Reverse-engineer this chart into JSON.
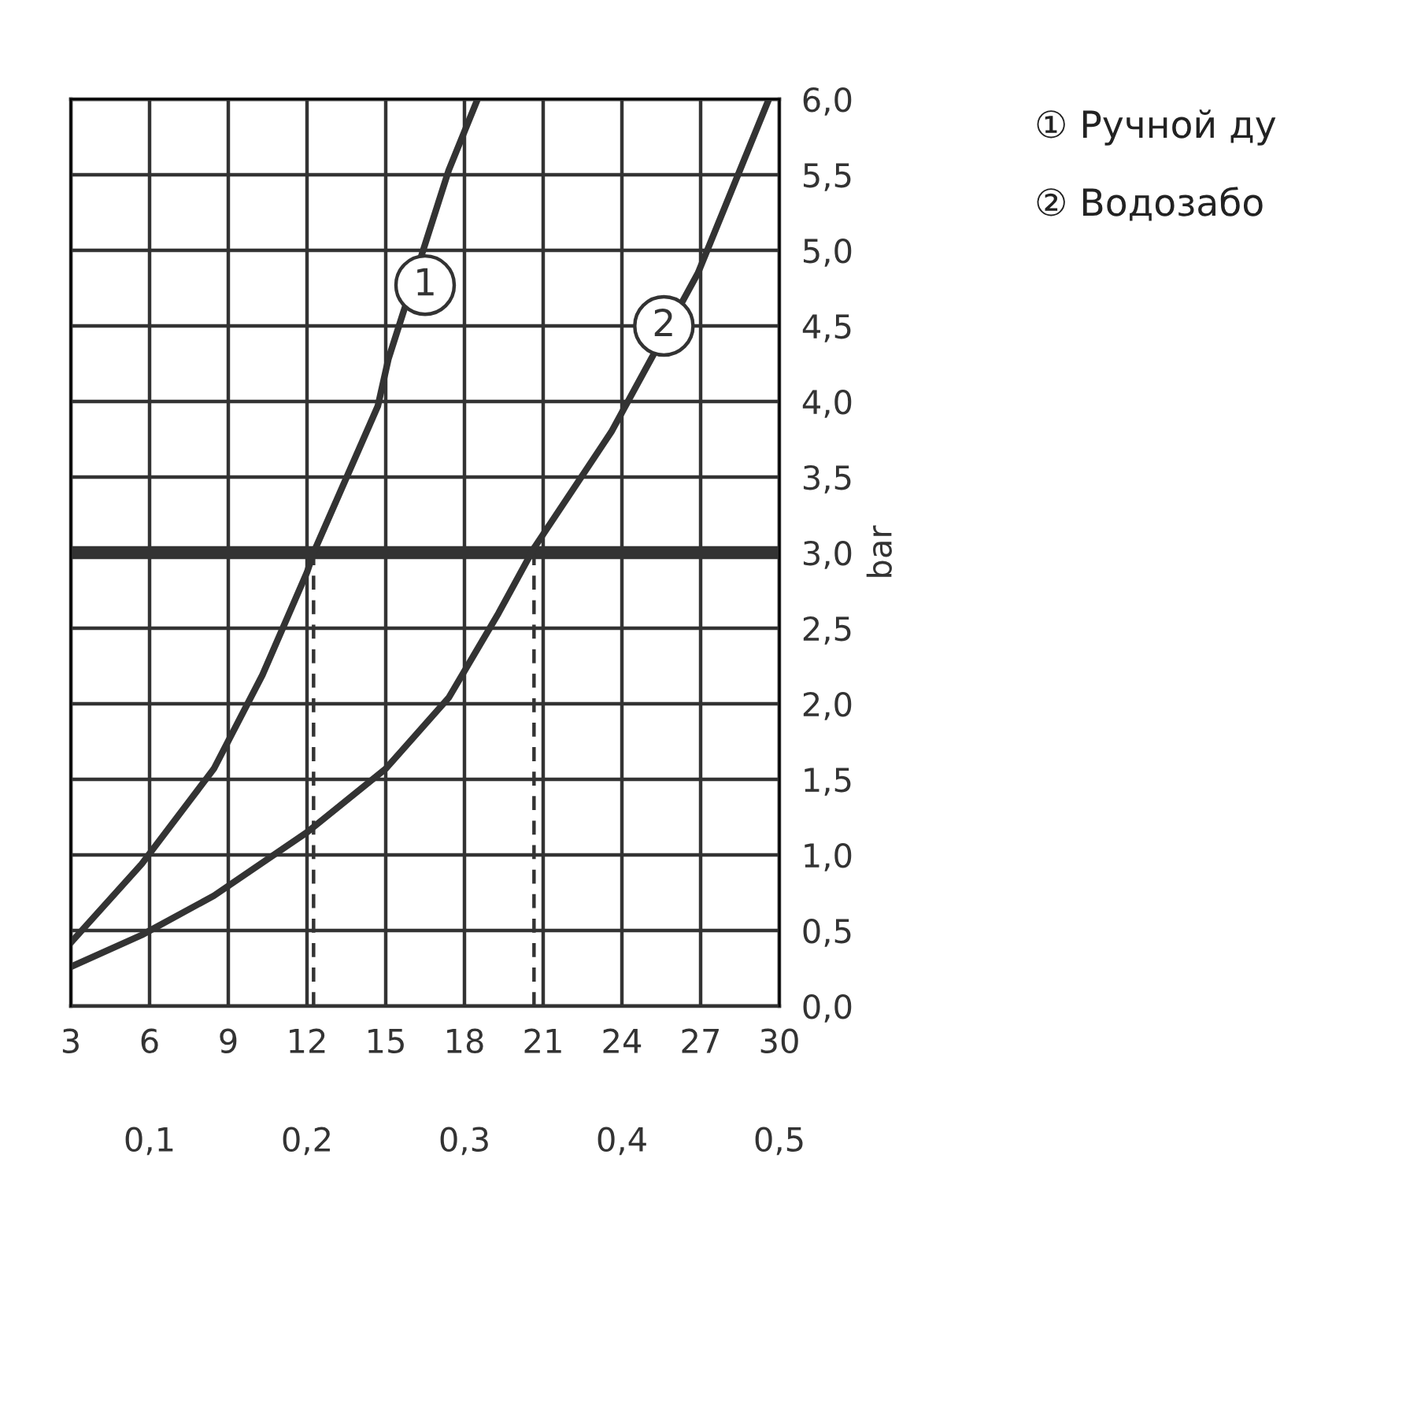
{
  "chart_data": {
    "type": "line",
    "ylabel": "bar",
    "x": [
      3.0,
      5.7,
      8.45,
      10.3,
      12.0,
      12.25,
      14.7,
      15.1,
      17.4,
      18.5
    ],
    "series": [
      {
        "color": "#333333",
        "values": [
          0.42,
          0.94,
          1.57,
          2.19,
          2.87,
          3.0,
          3.97,
          4.28,
          5.53,
          6.0
        ]
      },
      {
        "color": "#333333",
        "x": [
          3.0,
          5.7,
          8.45,
          12.0,
          15.0,
          17.4,
          19.3,
          20.65,
          23.6,
          26.9,
          29.6
        ],
        "values": [
          0.26,
          0.47,
          0.73,
          1.15,
          1.57,
          2.04,
          2.6,
          3.03,
          3.8,
          4.85,
          6.0
        ]
      }
    ],
    "xlim": [
      3,
      30
    ],
    "xticks": [
      3,
      6,
      9,
      12,
      15,
      18,
      21,
      24,
      27,
      30
    ],
    "x2lim": [
      0.05,
      0.5
    ],
    "x2ticks": [
      {
        "value": 0.1,
        "label": "0,1"
      },
      {
        "value": 0.2,
        "label": "0,2"
      },
      {
        "value": 0.3,
        "label": "0,3"
      },
      {
        "value": 0.4,
        "label": "0,4"
      },
      {
        "value": 0.5,
        "label": "0,5"
      }
    ],
    "ylim": [
      0,
      6
    ],
    "yticks": [
      {
        "value": 0,
        "label": "0,0"
      },
      {
        "value": 0.5,
        "label": "0,5"
      },
      {
        "value": 1,
        "label": "1,0"
      },
      {
        "value": 1.5,
        "label": "1,5"
      },
      {
        "value": 2,
        "label": "2,0"
      },
      {
        "value": 2.5,
        "label": "2,5"
      },
      {
        "value": 3,
        "label": "3,0"
      },
      {
        "value": 3.5,
        "label": "3,5"
      },
      {
        "value": 4,
        "label": "4,0"
      },
      {
        "value": 4.5,
        "label": "4,5"
      },
      {
        "value": 5,
        "label": "5,0"
      },
      {
        "value": 5.5,
        "label": "5,5"
      },
      {
        "value": 6,
        "label": "6,0"
      }
    ],
    "grid": true,
    "line_style": "solid",
    "marker": "none",
    "ref_lines": [
      {
        "axis": "y",
        "value": 3,
        "color": "#333333",
        "line_style": "solid"
      },
      {
        "axis": "x",
        "value": 12.25,
        "color": "#333333",
        "line_style": "dashed"
      },
      {
        "axis": "x",
        "value": 20.65,
        "color": "#333333",
        "line_style": "dashed"
      }
    ],
    "annotations": [
      {
        "text": "1",
        "x": 16.5,
        "y": 4.77
      },
      {
        "text": "2",
        "x": 25.6,
        "y": 4.5
      },
      "① Ручной ду",
      "② Водозабо"
    ]
  }
}
